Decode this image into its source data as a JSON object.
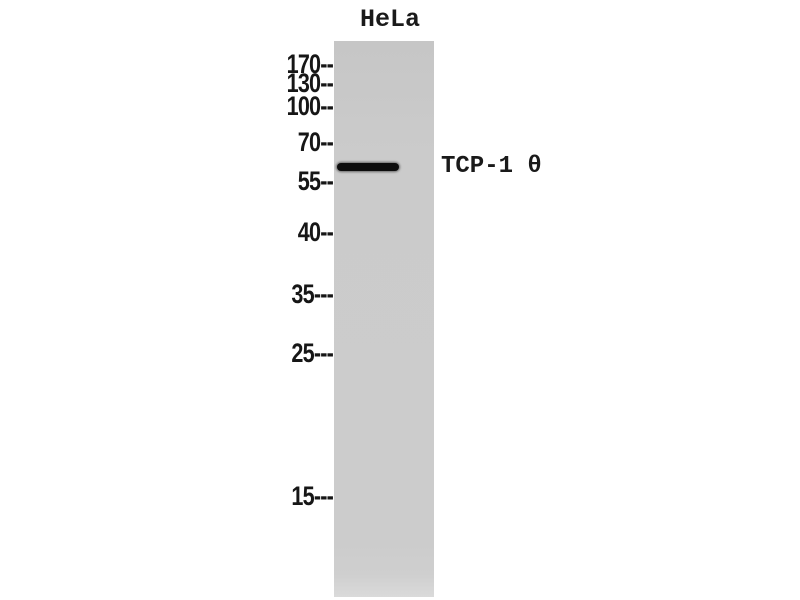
{
  "figure": {
    "type": "western-blot",
    "lane_label": "HeLa",
    "band_label": "TCP-1 θ",
    "band_location": "between 55 and 70 kDa markers",
    "markers": [
      {
        "kda": "170",
        "text": "170--"
      },
      {
        "kda": "130",
        "text": "130--"
      },
      {
        "kda": "100",
        "text": "100--"
      },
      {
        "kda": "70",
        "text": "70--"
      },
      {
        "kda": "55",
        "text": "55--"
      },
      {
        "kda": "40",
        "text": "40--"
      },
      {
        "kda": "35",
        "text": "35---"
      },
      {
        "kda": "25",
        "text": "25---"
      },
      {
        "kda": "15",
        "text": "15---"
      }
    ],
    "colors": {
      "background": "#ffffff",
      "lane_gray": "#cbcbcb",
      "band_black": "#0d0d0d",
      "text_black": "#1a1a1a"
    }
  }
}
